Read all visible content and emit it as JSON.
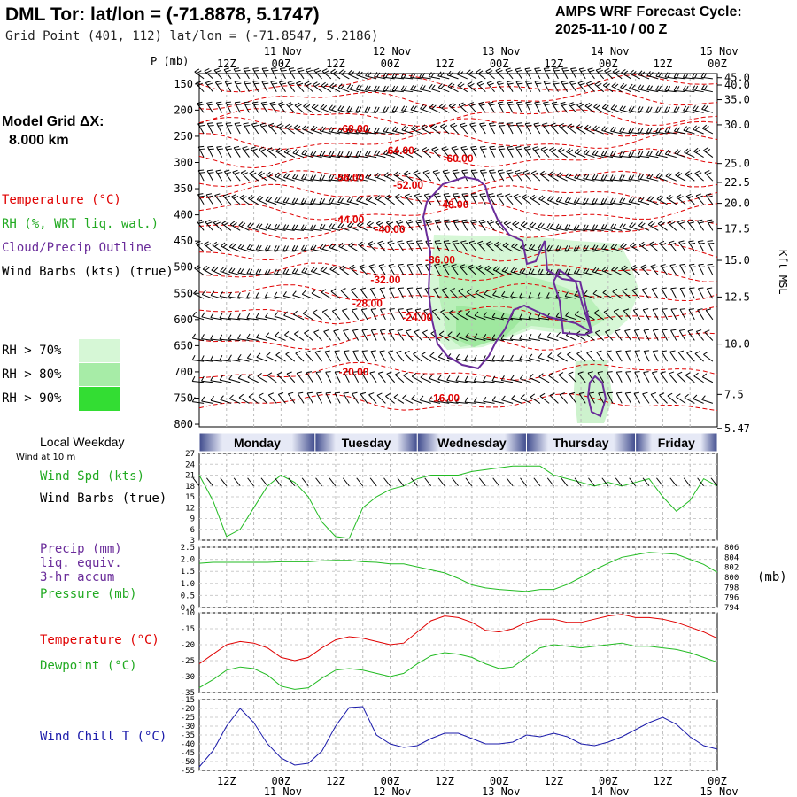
{
  "header": {
    "title": "DML Tor:  lat/lon = (-71.8878, 5.1747)",
    "subtitle": "Grid Point (401, 112) lat/lon = (-71.8547, 5.2186)",
    "cycle_line1": "AMPS WRF Forecast Cycle:",
    "cycle_line2": "2025-11-10 / 00  Z",
    "model_grid_label": "Model Grid ΔX:",
    "model_grid_value": "8.000 km"
  },
  "colors": {
    "temperature": "#e00000",
    "rh": "#22bb22",
    "cloud_outline": "#6a2c9a",
    "wind": "#000000",
    "wind_chill": "#1a1aaa",
    "rh70": "#d6f7d6",
    "rh80": "#a7eca7",
    "rh90": "#33dd33"
  },
  "legend": {
    "temperature": "Temperature (°C)",
    "rh": "RH (%, WRT liq. wat.)",
    "cloud": "Cloud/Precip Outline",
    "wind": "Wind Barbs (kts) (true)",
    "rh70": "RH > 70%",
    "rh80": "RH > 80%",
    "rh90": "RH > 90%"
  },
  "time_axis": {
    "hour_labels": [
      "12Z",
      "00Z",
      "12Z",
      "00Z",
      "12Z",
      "00Z",
      "12Z",
      "00Z",
      "12Z",
      "00Z"
    ],
    "date_labels": [
      "11 Nov",
      "12 Nov",
      "13 Nov",
      "14 Nov",
      "15 Nov"
    ]
  },
  "chart_data": [
    {
      "type": "heatmap",
      "ylabel": "P (mb)",
      "ylabel_right": "Kft MSL",
      "pressure_ticks": [
        "150",
        "200",
        "250",
        "300",
        "350",
        "400",
        "450",
        "500",
        "550",
        "600",
        "650",
        "700",
        "750",
        "800"
      ],
      "height_ticks": [
        "45.0",
        "40.0",
        "35.0",
        "30.0",
        "25.0",
        "22.5",
        "20.0",
        "17.5",
        "15.0",
        "12.5",
        "10.0",
        "7.5",
        "5.47"
      ],
      "height_tick_pressure": [
        138,
        152,
        180,
        228,
        302,
        338,
        378,
        427,
        487,
        557,
        647,
        743,
        808
      ],
      "ylim": [
        805,
        130
      ],
      "x_hours": [
        0,
        114
      ],
      "isotherm_labels": [
        {
          "text": "-68.00",
          "hour": 34,
          "p": 236
        },
        {
          "text": "-64.00",
          "hour": 44,
          "p": 277
        },
        {
          "text": "-60.00",
          "hour": 57,
          "p": 292
        },
        {
          "text": "-56.00",
          "hour": 33,
          "p": 329
        },
        {
          "text": "-52.00",
          "hour": 46,
          "p": 343
        },
        {
          "text": "-48.00",
          "hour": 56,
          "p": 380
        },
        {
          "text": "-44.00",
          "hour": 33,
          "p": 409
        },
        {
          "text": "-40.00",
          "hour": 42,
          "p": 428
        },
        {
          "text": "-36.00",
          "hour": 53,
          "p": 486
        },
        {
          "text": "-32.00",
          "hour": 41,
          "p": 524
        },
        {
          "text": "-28.00",
          "hour": 37,
          "p": 569
        },
        {
          "text": "-24.00",
          "hour": 48,
          "p": 596
        },
        {
          "text": "-20.00",
          "hour": 34,
          "p": 700
        },
        {
          "text": "-16.00",
          "hour": 54,
          "p": 750
        }
      ]
    },
    {
      "type": "line",
      "ylabel": "Wind Spd (kts)",
      "ylabel2": "Wind Barbs (true)",
      "ylim": [
        3,
        27
      ],
      "yticks": [
        "27",
        "24",
        "21",
        "18",
        "15",
        "12",
        "9",
        "6",
        "3"
      ],
      "x": [
        0,
        3,
        6,
        9,
        12,
        15,
        18,
        21,
        24,
        27,
        30,
        33,
        36,
        39,
        42,
        45,
        48,
        51,
        54,
        57,
        60,
        63,
        66,
        69,
        72,
        75,
        78,
        81,
        84,
        87,
        90,
        93,
        96,
        99,
        102,
        105,
        108,
        111,
        114
      ],
      "values": [
        21,
        14,
        4,
        6,
        12,
        18,
        21,
        19,
        15,
        8,
        4,
        3.5,
        12,
        15,
        17,
        18,
        20,
        21,
        21,
        21,
        22,
        22.5,
        23,
        23.5,
        23.5,
        23.5,
        21,
        20,
        19,
        18,
        19,
        18,
        19,
        20,
        15,
        11,
        14,
        20,
        18
      ]
    },
    {
      "type": "line",
      "ylabel": "Precip (mm)",
      "ylabel_lines": [
        "liq. equiv.",
        "3-hr accum"
      ],
      "ylabel2": "Pressure (mb)",
      "ylabel_right": "(mb)",
      "ylim": [
        0,
        2.5
      ],
      "yticks": [
        "2.5",
        "2.0",
        "1.5",
        "1.0",
        "0.5",
        "0.0"
      ],
      "y2lim": [
        794,
        806
      ],
      "y2ticks": [
        "806",
        "804",
        "802",
        "800",
        "798",
        "796",
        "794"
      ],
      "x": [
        0,
        3,
        6,
        9,
        12,
        15,
        18,
        21,
        24,
        27,
        30,
        33,
        36,
        39,
        42,
        45,
        48,
        51,
        54,
        57,
        60,
        63,
        66,
        69,
        72,
        75,
        78,
        81,
        84,
        87,
        90,
        93,
        96,
        99,
        102,
        105,
        108,
        111,
        114
      ],
      "values": [
        802.8,
        803.0,
        803.0,
        803.0,
        803.0,
        803.0,
        803.1,
        803.1,
        803.1,
        803.3,
        803.4,
        803.4,
        803.1,
        803.0,
        802.7,
        802.7,
        802.1,
        801.5,
        800.9,
        799.8,
        798.5,
        797.9,
        797.6,
        797.4,
        797.2,
        797.6,
        797.6,
        798.6,
        800.0,
        801.5,
        802.8,
        804.0,
        804.5,
        805.0,
        804.8,
        804.6,
        803.6,
        802.6,
        801.0
      ]
    },
    {
      "type": "line",
      "ylabel": "Temperature (°C)",
      "ylabel2": "Dewpoint (°C)",
      "ylim": [
        -35,
        -10
      ],
      "yticks": [
        "-10",
        "-15",
        "-20",
        "-25",
        "-30",
        "-35"
      ],
      "x": [
        0,
        3,
        6,
        9,
        12,
        15,
        18,
        21,
        24,
        27,
        30,
        33,
        36,
        39,
        42,
        45,
        48,
        51,
        54,
        57,
        60,
        63,
        66,
        69,
        72,
        75,
        78,
        81,
        84,
        87,
        90,
        93,
        96,
        99,
        102,
        105,
        108,
        111,
        114
      ],
      "series": [
        {
          "name": "Temperature (°C)",
          "values": [
            -26,
            -23,
            -20,
            -19,
            -19.5,
            -21,
            -24,
            -25,
            -24,
            -21,
            -18.5,
            -17.5,
            -18,
            -19,
            -20,
            -19.5,
            -16,
            -12.5,
            -11,
            -11.5,
            -13,
            -15.5,
            -16,
            -15,
            -13,
            -12,
            -12,
            -13,
            -13,
            -12,
            -11,
            -10.5,
            -11.5,
            -11.5,
            -12,
            -13,
            -14.5,
            -16,
            -18
          ]
        },
        {
          "name": "Dewpoint (°C)",
          "values": [
            -33.5,
            -31,
            -28,
            -27,
            -27.5,
            -29.5,
            -33,
            -34,
            -33.5,
            -30.5,
            -28,
            -27.5,
            -28,
            -29,
            -30,
            -29,
            -26,
            -23.5,
            -22.5,
            -23,
            -24,
            -26,
            -27.5,
            -27,
            -24,
            -21,
            -20,
            -20.5,
            -21,
            -20.5,
            -20,
            -19.5,
            -20.5,
            -20.5,
            -21,
            -21.5,
            -22.5,
            -24,
            -25.5
          ]
        }
      ]
    },
    {
      "type": "line",
      "ylabel": "Wind Chill T (°C)",
      "ylim": [
        -55,
        -15
      ],
      "yticks": [
        "-15",
        "-20",
        "-25",
        "-30",
        "-35",
        "-40",
        "-45",
        "-50",
        "-55"
      ],
      "x": [
        0,
        3,
        6,
        9,
        12,
        15,
        18,
        21,
        24,
        27,
        30,
        33,
        36,
        39,
        42,
        45,
        48,
        51,
        54,
        57,
        60,
        63,
        66,
        69,
        72,
        75,
        78,
        81,
        84,
        87,
        90,
        93,
        96,
        99,
        102,
        105,
        108,
        111,
        114
      ],
      "values": [
        -53,
        -44,
        -30,
        -20,
        -28,
        -40,
        -48,
        -52,
        -51,
        -44,
        -30,
        -19.5,
        -19,
        -35,
        -40,
        -42,
        -41,
        -37,
        -34,
        -34,
        -37,
        -40,
        -40,
        -39,
        -35,
        -36,
        -34,
        -36,
        -40,
        -41,
        -39,
        -36,
        -32,
        -28,
        -25,
        -29,
        -36,
        -41,
        -43
      ]
    }
  ],
  "day_band": {
    "title": "Local Weekday",
    "note": "Wind at 10 m",
    "days": [
      "Monday",
      "Tuesday",
      "Wednesday",
      "Thursday",
      "Friday"
    ]
  }
}
